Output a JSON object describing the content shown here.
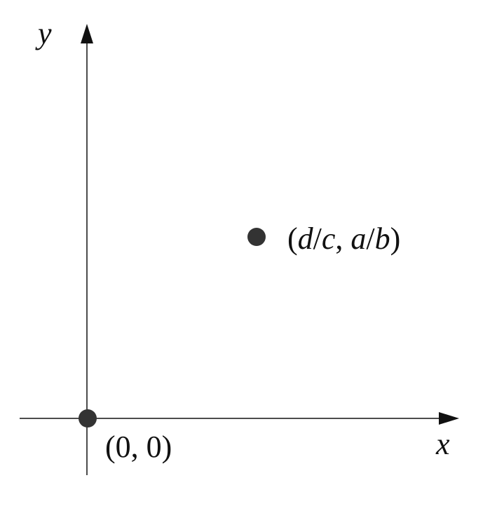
{
  "axes": {
    "x_label": "x",
    "y_label": "y"
  },
  "points": [
    {
      "label": "(0, 0)"
    },
    {
      "label": "(d/c, a/b)"
    }
  ]
}
